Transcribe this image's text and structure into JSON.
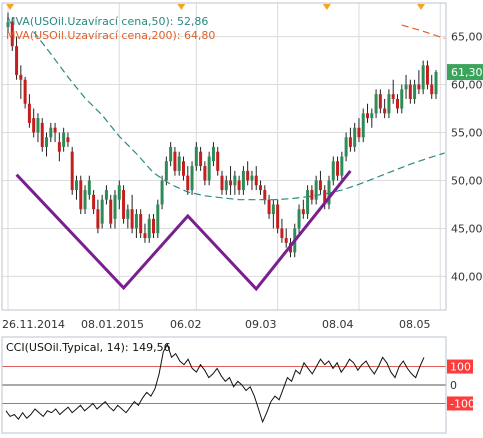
{
  "colors": {
    "up": "#2e8b57",
    "down": "#c41e1e",
    "wick": "#222222",
    "ma50": "#2a8a84",
    "ma200": "#e0602a",
    "pattern": "#7a1f8f",
    "grid": "#dcdcdc",
    "border": "#b8c4d0",
    "cci_line": "#111111",
    "cci_level": "#e06060",
    "cci_zero": "#555555",
    "tag_green_bg": "#3aa45a",
    "tag_red_bg": "#ff3c3c",
    "event_marker": "#f4a623"
  },
  "chart_data": [
    {
      "type": "candlestick",
      "title": "",
      "legend": [
        {
          "text": "MVA(USOil.Uzavírací cena,50): 52,86",
          "color": "#2a8a84"
        },
        {
          "text": "MVA(USOil.Uzavírací cena,200): 64,80",
          "color": "#e0602a"
        }
      ],
      "price_tag": "61,30",
      "y_ticks": [
        "65,00",
        "60,00",
        "55,00",
        "50,00",
        "45,00",
        "40,00"
      ],
      "y_tick_values": [
        65,
        60,
        55,
        50,
        45,
        40
      ],
      "ylim": [
        36.5,
        68.5
      ],
      "x_ticks": [
        "26.11.2014",
        "08.01.2015",
        "06.02",
        "09.03",
        "08.04",
        "08.05"
      ],
      "x_tick_index": [
        0,
        26,
        44,
        63,
        82,
        101
      ],
      "candles": [
        [
          66.0,
          67.5,
          65.5,
          66.5
        ],
        [
          66.5,
          67.0,
          63.5,
          64.0
        ],
        [
          64.0,
          65.0,
          60.5,
          61.0
        ],
        [
          61.0,
          62.0,
          58.5,
          60.5
        ],
        [
          60.5,
          60.8,
          57.5,
          58.0
        ],
        [
          58.0,
          59.0,
          55.5,
          56.0
        ],
        [
          56.5,
          57.5,
          54.5,
          55.0
        ],
        [
          55.0,
          57.0,
          54.0,
          56.5
        ],
        [
          56.0,
          56.5,
          53.0,
          53.5
        ],
        [
          53.5,
          55.0,
          52.5,
          54.5
        ],
        [
          54.5,
          56.0,
          54.0,
          55.5
        ],
        [
          55.5,
          56.0,
          54.0,
          55.0
        ],
        [
          54.0,
          55.0,
          52.0,
          53.0
        ],
        [
          53.5,
          55.5,
          53.0,
          55.0
        ],
        [
          54.5,
          55.0,
          53.5,
          54.0
        ],
        [
          53.0,
          53.5,
          48.5,
          49.0
        ],
        [
          49.0,
          50.5,
          48.0,
          50.0
        ],
        [
          50.0,
          50.5,
          46.5,
          47.0
        ],
        [
          47.0,
          49.5,
          46.5,
          49.0
        ],
        [
          48.5,
          50.5,
          48.0,
          50.0
        ],
        [
          48.5,
          49.0,
          46.5,
          47.0
        ],
        [
          47.0,
          48.0,
          44.5,
          45.0
        ],
        [
          45.5,
          48.5,
          45.0,
          48.0
        ],
        [
          48.0,
          49.5,
          47.5,
          49.0
        ],
        [
          48.0,
          48.5,
          45.0,
          45.5
        ],
        [
          46.0,
          49.0,
          45.0,
          48.5
        ],
        [
          48.0,
          50.0,
          47.0,
          49.5
        ],
        [
          49.0,
          49.5,
          45.5,
          46.0
        ],
        [
          46.0,
          47.5,
          45.0,
          47.0
        ],
        [
          47.0,
          48.5,
          44.5,
          45.0
        ],
        [
          45.0,
          47.0,
          44.0,
          46.5
        ],
        [
          46.5,
          47.0,
          44.0,
          44.5
        ],
        [
          44.5,
          45.5,
          43.5,
          44.0
        ],
        [
          44.0,
          46.5,
          43.5,
          46.0
        ],
        [
          46.0,
          46.5,
          44.0,
          44.5
        ],
        [
          44.5,
          48.0,
          44.0,
          47.5
        ],
        [
          47.5,
          50.5,
          47.0,
          50.0
        ],
        [
          50.0,
          52.5,
          49.5,
          52.0
        ],
        [
          52.0,
          54.0,
          51.5,
          53.5
        ],
        [
          53.0,
          53.5,
          50.5,
          51.0
        ],
        [
          51.0,
          53.0,
          50.5,
          52.5
        ],
        [
          52.0,
          52.5,
          50.0,
          50.5
        ],
        [
          50.5,
          51.5,
          48.5,
          49.0
        ],
        [
          49.0,
          52.0,
          48.5,
          51.5
        ],
        [
          51.5,
          54.0,
          51.0,
          53.5
        ],
        [
          53.0,
          53.5,
          51.0,
          51.5
        ],
        [
          51.5,
          52.0,
          49.5,
          50.0
        ],
        [
          50.0,
          53.0,
          49.5,
          52.5
        ],
        [
          52.0,
          54.0,
          51.5,
          53.5
        ],
        [
          53.0,
          53.5,
          50.5,
          51.0
        ],
        [
          50.5,
          51.0,
          48.5,
          49.0
        ],
        [
          49.0,
          50.5,
          48.5,
          50.0
        ],
        [
          50.0,
          51.5,
          48.5,
          49.5
        ],
        [
          49.5,
          51.0,
          48.5,
          50.5
        ],
        [
          50.0,
          50.5,
          48.5,
          49.0
        ],
        [
          49.0,
          51.5,
          48.5,
          51.0
        ],
        [
          51.0,
          52.0,
          49.5,
          50.0
        ],
        [
          50.0,
          51.0,
          49.0,
          50.5
        ],
        [
          50.5,
          51.5,
          49.0,
          49.5
        ],
        [
          49.5,
          50.0,
          48.5,
          49.0
        ],
        [
          49.0,
          49.5,
          47.5,
          48.0
        ],
        [
          48.0,
          48.5,
          46.0,
          46.5
        ],
        [
          46.5,
          48.0,
          45.0,
          47.5
        ],
        [
          47.5,
          48.0,
          44.5,
          45.0
        ],
        [
          45.0,
          46.0,
          43.5,
          44.0
        ],
        [
          44.0,
          45.0,
          43.0,
          43.5
        ],
        [
          43.5,
          44.0,
          42.0,
          42.5
        ],
        [
          42.5,
          45.5,
          42.0,
          45.0
        ],
        [
          45.0,
          47.5,
          44.5,
          47.0
        ],
        [
          47.0,
          48.0,
          46.0,
          46.5
        ],
        [
          46.5,
          49.5,
          46.0,
          49.0
        ],
        [
          49.0,
          49.5,
          47.5,
          48.0
        ],
        [
          48.0,
          50.5,
          47.5,
          50.0
        ],
        [
          50.0,
          51.0,
          48.5,
          49.0
        ],
        [
          49.0,
          49.5,
          47.0,
          47.5
        ],
        [
          47.5,
          50.5,
          47.0,
          50.0
        ],
        [
          50.0,
          52.5,
          49.5,
          52.0
        ],
        [
          52.0,
          52.5,
          50.0,
          50.5
        ],
        [
          50.5,
          53.0,
          50.0,
          52.5
        ],
        [
          52.5,
          55.0,
          52.0,
          54.5
        ],
        [
          54.5,
          55.5,
          53.0,
          53.5
        ],
        [
          53.5,
          56.0,
          53.0,
          55.5
        ],
        [
          55.5,
          56.5,
          54.0,
          54.5
        ],
        [
          54.5,
          57.5,
          54.0,
          57.0
        ],
        [
          57.0,
          58.0,
          56.0,
          56.5
        ],
        [
          56.5,
          57.5,
          55.5,
          57.0
        ],
        [
          57.0,
          59.5,
          56.5,
          59.0
        ],
        [
          59.0,
          59.5,
          57.0,
          57.5
        ],
        [
          57.5,
          58.5,
          56.5,
          57.0
        ],
        [
          57.0,
          59.5,
          56.5,
          59.0
        ],
        [
          59.0,
          60.5,
          58.0,
          58.5
        ],
        [
          58.5,
          59.0,
          57.0,
          57.5
        ],
        [
          57.5,
          60.0,
          57.0,
          59.5
        ],
        [
          59.5,
          61.0,
          58.5,
          60.0
        ],
        [
          60.0,
          60.5,
          58.0,
          58.5
        ],
        [
          58.5,
          60.5,
          58.0,
          60.0
        ],
        [
          60.0,
          61.5,
          59.0,
          59.5
        ],
        [
          59.5,
          62.5,
          59.0,
          62.0
        ],
        [
          62.0,
          62.5,
          59.5,
          60.0
        ],
        [
          60.0,
          61.0,
          58.5,
          59.0
        ],
        [
          59.0,
          61.5,
          58.5,
          61.3
        ]
      ],
      "ma50": [
        [
          6,
          65.5
        ],
        [
          10,
          63.2
        ],
        [
          14,
          60.8
        ],
        [
          18,
          58.6
        ],
        [
          22,
          56.8
        ],
        [
          26,
          54.6
        ],
        [
          30,
          52.8
        ],
        [
          34,
          50.8
        ],
        [
          38,
          49.6
        ],
        [
          42,
          48.8
        ],
        [
          46,
          48.4
        ],
        [
          50,
          48.2
        ],
        [
          54,
          48.0
        ],
        [
          58,
          48.0
        ],
        [
          62,
          48.0
        ],
        [
          66,
          48.1
        ],
        [
          70,
          48.3
        ],
        [
          74,
          48.6
        ],
        [
          78,
          49.0
        ],
        [
          82,
          49.6
        ],
        [
          86,
          50.3
        ],
        [
          90,
          51.0
        ],
        [
          94,
          51.7
        ],
        [
          98,
          52.3
        ],
        [
          102,
          52.86
        ]
      ],
      "ma200": [
        [
          92,
          66.2
        ],
        [
          96,
          65.7
        ],
        [
          100,
          65.1
        ],
        [
          102,
          64.8
        ]
      ],
      "pattern": [
        [
          2,
          50.6
        ],
        [
          27,
          38.8
        ],
        [
          42,
          46.3
        ],
        [
          58,
          38.7
        ],
        [
          80,
          51.0
        ]
      ]
    },
    {
      "type": "line",
      "title": "",
      "legend": [
        {
          "text": "CCI(USOil.Typical, 14): 149,56",
          "color": "#111111"
        }
      ],
      "ylim": [
        -260,
        260
      ],
      "levels": [
        {
          "value": 100,
          "label": "100",
          "tag": "red"
        },
        {
          "value": 0,
          "label": "0",
          "tag": "none"
        },
        {
          "value": -100,
          "label": "-100",
          "tag": "red"
        }
      ],
      "values": [
        -140,
        -170,
        -160,
        -185,
        -150,
        -180,
        -160,
        -130,
        -150,
        -170,
        -140,
        -150,
        -130,
        -160,
        -140,
        -120,
        -150,
        -130,
        -110,
        -140,
        -120,
        -100,
        -130,
        -110,
        -90,
        -120,
        -140,
        -110,
        -130,
        -150,
        -120,
        -90,
        -110,
        -70,
        -40,
        -60,
        -20,
        60,
        180,
        220,
        150,
        170,
        130,
        110,
        140,
        90,
        70,
        110,
        80,
        40,
        60,
        90,
        50,
        20,
        40,
        -10,
        20,
        0,
        -30,
        -10,
        -60,
        -130,
        -200,
        -150,
        -90,
        -60,
        -80,
        -20,
        40,
        20,
        80,
        60,
        120,
        90,
        60,
        100,
        140,
        110,
        130,
        90,
        120,
        70,
        100,
        140,
        120,
        80,
        110,
        130,
        90,
        60,
        100,
        150,
        120,
        70,
        40,
        100,
        130,
        90,
        60,
        40,
        100,
        149.56
      ]
    }
  ]
}
